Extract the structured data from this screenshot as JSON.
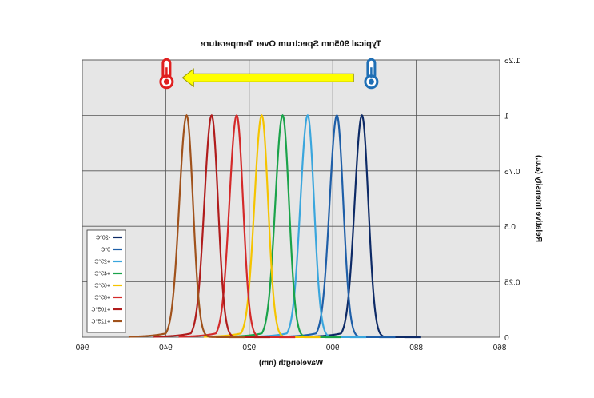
{
  "chart_data": {
    "type": "line",
    "title": "Typical 905nm Spectrum Over Temperature",
    "xlabel": "Wavelength (nm)",
    "ylabel": "Relative Intensity (a.u.)",
    "xlim": [
      860,
      960
    ],
    "ylim": [
      0,
      1.25
    ],
    "x_reversed": false,
    "mirrored_horizontally": true,
    "xticks": [
      860,
      880,
      900,
      920,
      940,
      960
    ],
    "xtick_labels": [
      "860",
      "880",
      "900",
      "920",
      "940",
      "960"
    ],
    "yticks": [
      0,
      0.25,
      0.5,
      0.75,
      1,
      1.25
    ],
    "ytick_labels": [
      "0",
      "0.25",
      "0.5",
      "0.75",
      "1",
      "1.25"
    ],
    "grid": true,
    "legend_position": "bottom-left",
    "series": [
      {
        "name": "-20°C",
        "color": "#0d2a66",
        "peak_nm": 893,
        "fwhm_nm": 3.6,
        "left_tail_nm": 6,
        "right_tail_nm": 12
      },
      {
        "name": "0°C",
        "color": "#1f5fa8",
        "peak_nm": 899,
        "fwhm_nm": 3.6,
        "left_tail_nm": 6,
        "right_tail_nm": 12
      },
      {
        "name": "+25°C",
        "color": "#3aa6dd",
        "peak_nm": 906,
        "fwhm_nm": 3.6,
        "left_tail_nm": 6,
        "right_tail_nm": 12
      },
      {
        "name": "+45°C",
        "color": "#1aa34a",
        "peak_nm": 912,
        "fwhm_nm": 3.6,
        "left_tail_nm": 6,
        "right_tail_nm": 12
      },
      {
        "name": "+65°C",
        "color": "#f5c400",
        "peak_nm": 917,
        "fwhm_nm": 3.6,
        "left_tail_nm": 6,
        "right_tail_nm": 12
      },
      {
        "name": "+85°C",
        "color": "#d42a2a",
        "peak_nm": 923,
        "fwhm_nm": 3.6,
        "left_tail_nm": 6,
        "right_tail_nm": 12
      },
      {
        "name": "+105°C",
        "color": "#b01c1c",
        "peak_nm": 929,
        "fwhm_nm": 3.6,
        "left_tail_nm": 6,
        "right_tail_nm": 12
      },
      {
        "name": "+125°C",
        "color": "#a0521c",
        "peak_nm": 935,
        "fwhm_nm": 3.6,
        "left_tail_nm": 6,
        "right_tail_nm": 12
      }
    ],
    "annotations": {
      "arrow": {
        "color": "#ffff00",
        "outline": "#999900",
        "from_nm": 895,
        "to_nm": 936,
        "y": 1.17
      },
      "cold_thermometer": {
        "icon": "thermometer-cold-icon",
        "color": "#1f6fb5",
        "at_nm": 890,
        "y": 1.17
      },
      "hot_thermometer": {
        "icon": "thermometer-hot-icon",
        "color": "#e02020",
        "at_nm": 940,
        "y": 1.17
      }
    }
  }
}
